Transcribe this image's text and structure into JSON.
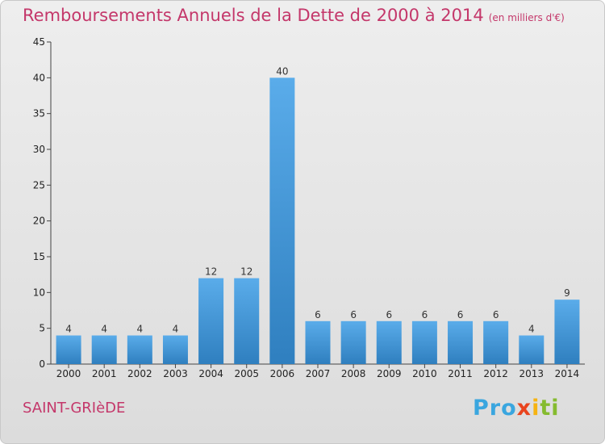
{
  "title": "Remboursements Annuels de la Dette de 2000 à 2014",
  "unit": "(en milliers d'€)",
  "commune": "SAINT-GRIèDE",
  "logo": {
    "p1": "Pro",
    "p2": "x",
    "p3": "i",
    "p4": "ti"
  },
  "colors": {
    "title": "#c4376a",
    "bar_top": "#5aacea",
    "bar_bottom": "#2f7fbf"
  },
  "chart_data": {
    "type": "bar",
    "categories": [
      "2000",
      "2001",
      "2002",
      "2003",
      "2004",
      "2005",
      "2006",
      "2007",
      "2008",
      "2009",
      "2010",
      "2011",
      "2012",
      "2013",
      "2014"
    ],
    "values": [
      4,
      4,
      4,
      4,
      12,
      12,
      40,
      6,
      6,
      6,
      6,
      6,
      6,
      4,
      9
    ],
    "title": "Remboursements Annuels de la Dette de 2000 à 2014",
    "xlabel": "",
    "ylabel": "",
    "ylim": [
      0,
      45
    ],
    "yticks": [
      0,
      5,
      10,
      15,
      20,
      25,
      30,
      35,
      40,
      45
    ],
    "grid": false
  }
}
